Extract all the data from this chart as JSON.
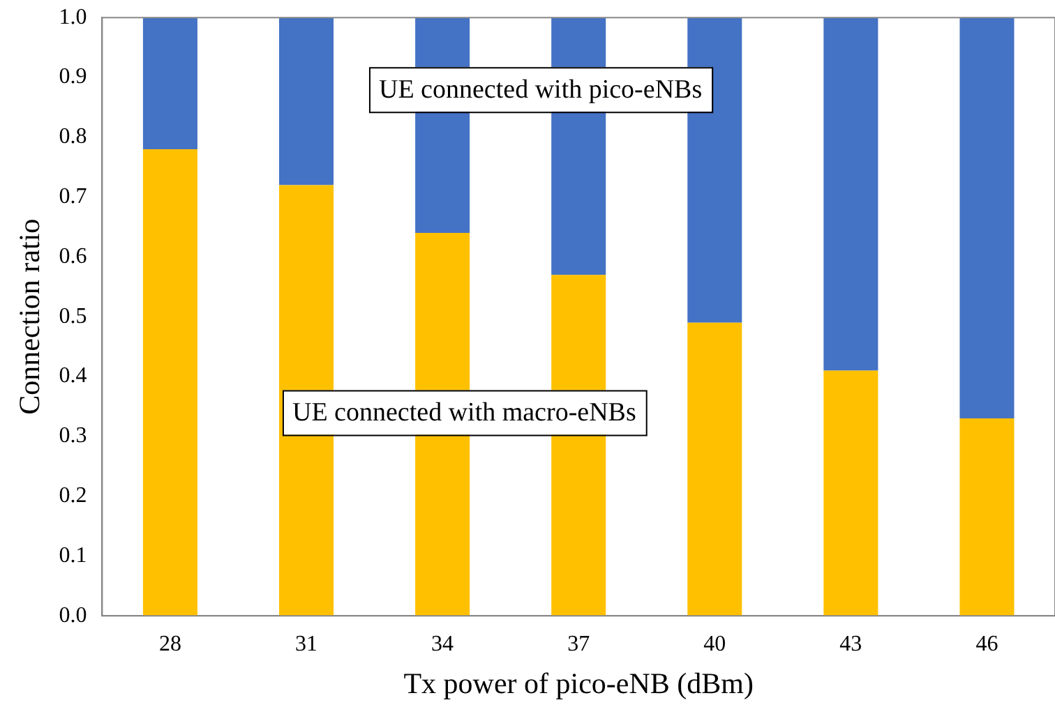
{
  "chart_data": {
    "type": "bar",
    "stacked": true,
    "xlabel": "Tx power of pico-eNB (dBm)",
    "ylabel": "Connection ratio",
    "categories": [
      "28",
      "31",
      "34",
      "37",
      "40",
      "43",
      "46"
    ],
    "series": [
      {
        "name": "UE connected with macro-eNBs",
        "color": "#ffc000",
        "values": [
          0.78,
          0.72,
          0.64,
          0.57,
          0.49,
          0.41,
          0.33
        ]
      },
      {
        "name": "UE connected with pico-eNBs",
        "color": "#4472c4",
        "values": [
          0.22,
          0.28,
          0.36,
          0.43,
          0.51,
          0.59,
          0.67
        ]
      }
    ],
    "ylim": [
      0,
      1
    ],
    "yticks": [
      {
        "value": 0,
        "label": "0.0"
      },
      {
        "value": 0.1,
        "label": "0.1"
      },
      {
        "value": 0.2,
        "label": "0.2"
      },
      {
        "value": 0.3,
        "label": "0.3"
      },
      {
        "value": 0.4,
        "label": "0.4"
      },
      {
        "value": 0.5,
        "label": "0.5"
      },
      {
        "value": 0.6,
        "label": "0.6"
      },
      {
        "value": 0.7,
        "label": "0.7"
      },
      {
        "value": 0.8,
        "label": "0.8"
      },
      {
        "value": 0.9,
        "label": "0.9"
      },
      {
        "value": 1,
        "label": "1.0"
      }
    ],
    "grid": false,
    "legend": false
  }
}
